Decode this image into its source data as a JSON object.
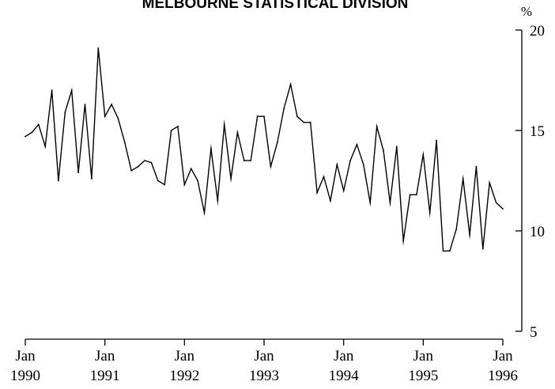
{
  "chart_data": {
    "type": "line",
    "title": "MELBOURNE STATISTICAL DIVISION",
    "xlabel": "",
    "ylabel": "%",
    "ylim": [
      5,
      20
    ],
    "xlim": [
      "1990-01",
      "1996-01"
    ],
    "y_ticks": [
      "5",
      "10",
      "15",
      "20"
    ],
    "x_ticks": [
      {
        "month": "Jan",
        "year": "1990"
      },
      {
        "month": "Jan",
        "year": "1991"
      },
      {
        "month": "Jan",
        "year": "1992"
      },
      {
        "month": "Jan",
        "year": "1993"
      },
      {
        "month": "Jan",
        "year": "1994"
      },
      {
        "month": "Jan",
        "year": "1995"
      },
      {
        "month": "Jan",
        "year": "1996"
      }
    ],
    "grid": false,
    "line_color": "#000000",
    "series": [
      {
        "x": [
          "1990-01",
          "1990-02",
          "1990-03",
          "1990-04",
          "1990-05",
          "1990-06",
          "1990-07",
          "1990-08",
          "1990-09",
          "1990-10",
          "1990-11",
          "1990-12",
          "1991-01",
          "1991-02",
          "1991-03",
          "1991-04",
          "1991-05",
          "1991-06",
          "1991-07",
          "1991-08",
          "1991-09",
          "1991-10",
          "1991-11",
          "1991-12",
          "1992-01",
          "1992-02",
          "1992-03",
          "1992-04",
          "1992-05",
          "1992-06",
          "1992-07",
          "1992-08",
          "1992-09",
          "1992-10",
          "1992-11",
          "1992-12",
          "1993-01",
          "1993-02",
          "1993-03",
          "1993-04",
          "1993-05",
          "1993-06",
          "1993-07",
          "1993-08",
          "1993-09",
          "1993-10",
          "1993-11",
          "1993-12",
          "1994-01",
          "1994-02",
          "1994-03",
          "1994-04",
          "1994-05",
          "1994-06",
          "1994-07",
          "1994-08",
          "1994-09",
          "1994-10",
          "1994-11",
          "1994-12",
          "1995-01",
          "1995-02",
          "1995-03",
          "1995-04",
          "1995-05",
          "1995-06",
          "1995-07",
          "1995-08",
          "1995-09",
          "1995-10",
          "1995-11",
          "1995-12",
          "1996-01"
        ],
        "values": [
          14.7,
          14.9,
          15.3,
          14.2,
          17.0,
          12.5,
          15.9,
          17.0,
          12.9,
          16.3,
          12.6,
          19.1,
          15.7,
          16.3,
          15.6,
          14.4,
          13.0,
          13.2,
          13.5,
          13.4,
          12.5,
          12.3,
          15.0,
          15.2,
          12.3,
          13.1,
          12.5,
          10.9,
          14.1,
          11.5,
          15.3,
          12.6,
          14.9,
          13.5,
          13.5,
          15.7,
          15.7,
          13.2,
          14.4,
          16.1,
          17.3,
          15.7,
          15.4,
          15.4,
          11.9,
          12.7,
          11.5,
          13.3,
          12.0,
          13.5,
          14.3,
          13.3,
          11.4,
          15.2,
          14.0,
          11.4,
          14.2,
          9.5,
          11.8,
          11.8,
          13.8,
          10.9,
          14.5,
          9.0,
          9.0,
          10.1,
          12.6,
          9.8,
          13.2,
          9.1,
          12.4,
          11.4,
          11.1
        ]
      }
    ]
  }
}
